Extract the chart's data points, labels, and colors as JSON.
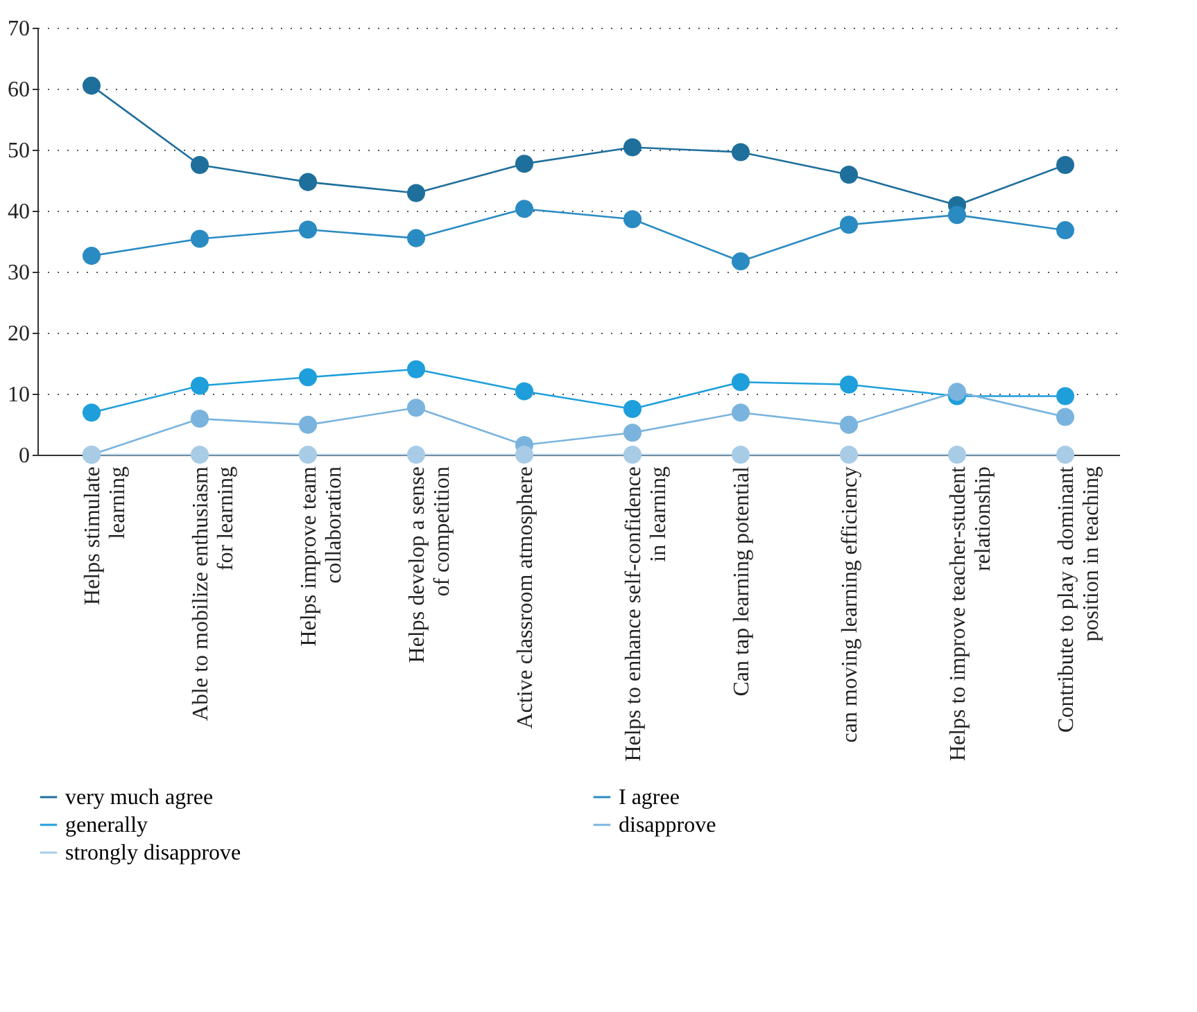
{
  "chart_data": {
    "type": "line",
    "categories": [
      "Helps stimulate\nlearning",
      "Able to mobilize enthusiasm\nfor learning",
      "Helps improve team\ncollaboration",
      "Helps develop a sense\nof competition",
      "Active classroom atmosphere",
      "Helps to enhance self-confidence\nin learning",
      "Can tap learning potential",
      "can moving learning efficiency",
      "Helps to improve teacher-student\nrelationship",
      "Contribute to play a dominant\nposition in teaching"
    ],
    "series": [
      {
        "name": "very much agree",
        "color": "#1f6f9c",
        "values": [
          60.5,
          47.5,
          44.7,
          42.9,
          47.7,
          50.4,
          49.6,
          45.9,
          40.9,
          47.5
        ]
      },
      {
        "name": "I agree",
        "color": "#2a8bc2",
        "values": [
          32.6,
          35.4,
          36.9,
          35.5,
          40.3,
          38.6,
          31.7,
          37.7,
          39.3,
          36.8
        ]
      },
      {
        "name": "generally",
        "color": "#1e9fdb",
        "values": [
          6.9,
          11.3,
          12.7,
          14.0,
          10.4,
          7.5,
          11.9,
          11.5,
          9.6,
          9.6
        ]
      },
      {
        "name": "disapprove",
        "color": "#7ab4de",
        "values": [
          0,
          5.9,
          4.9,
          7.7,
          1.6,
          3.6,
          6.9,
          4.9,
          10.3,
          6.2
        ]
      },
      {
        "name": "strongly disapprove",
        "color": "#a8cce6",
        "values": [
          0,
          0,
          0,
          0,
          0,
          0,
          0,
          0,
          0,
          0
        ]
      }
    ],
    "ylim": [
      0,
      70
    ],
    "yticks": [
      0,
      10,
      20,
      30,
      40,
      50,
      60,
      70
    ],
    "grid": "y",
    "legend": "bottom",
    "marker": "circle",
    "line_style": "solid"
  }
}
